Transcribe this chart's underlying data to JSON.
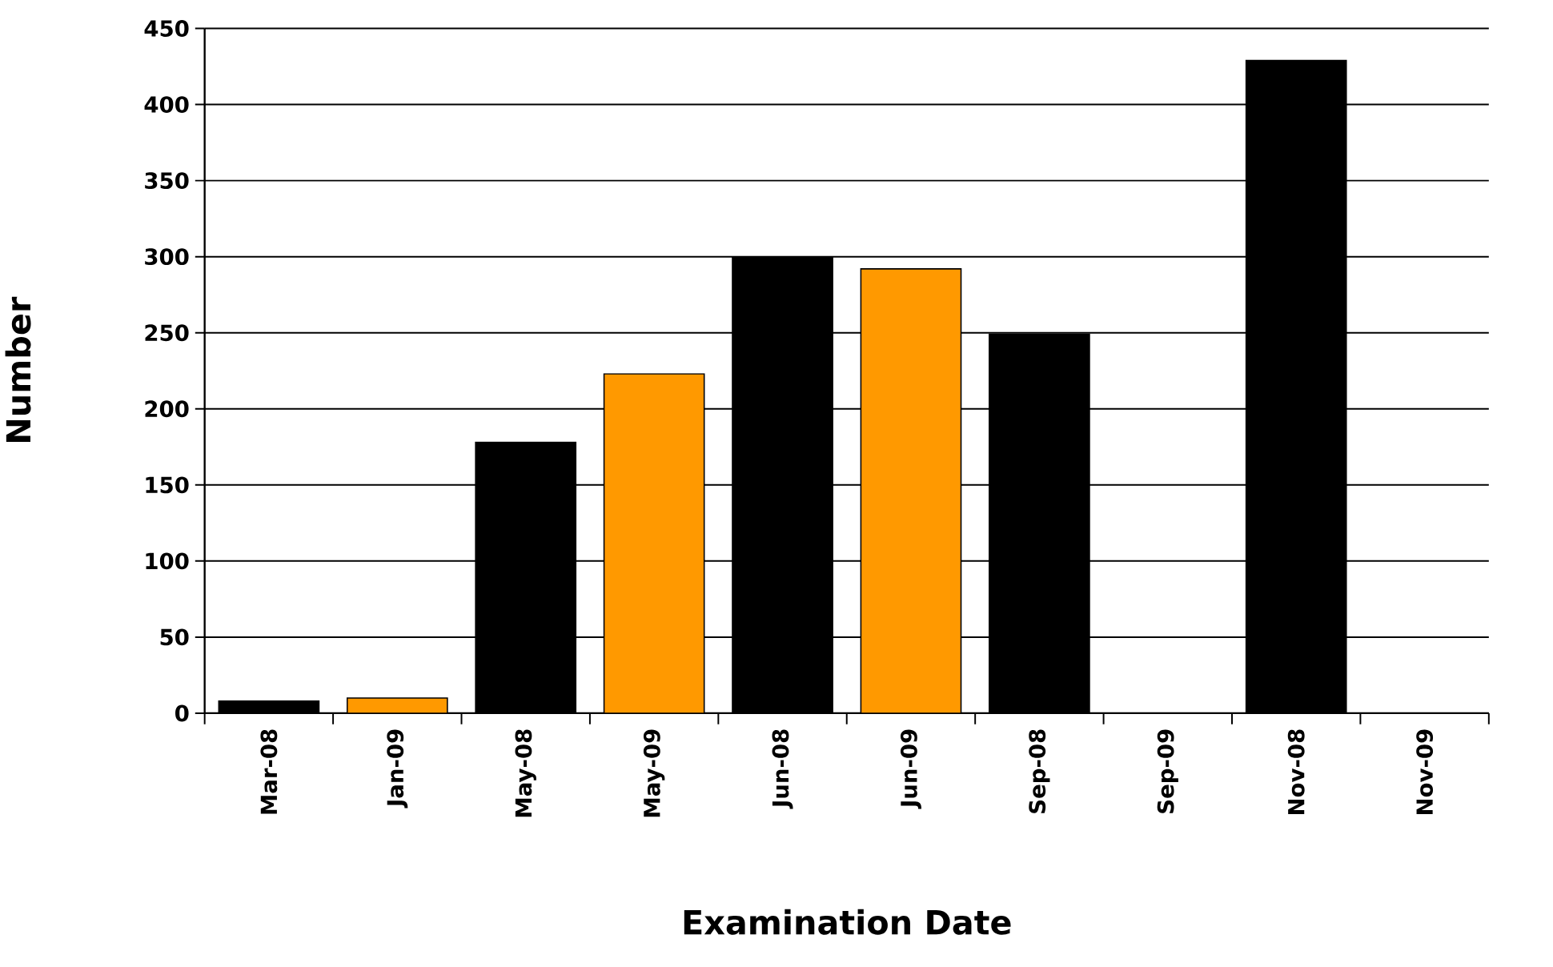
{
  "chart_data": {
    "type": "bar",
    "xlabel": "Examination Date",
    "ylabel": "Number",
    "categories": [
      "Mar-08",
      "Jan-09",
      "May-08",
      "May-09",
      "Jun-08",
      "Jun-09",
      "Sep-08",
      "Sep-09",
      "Nov-08",
      "Nov-09"
    ],
    "values": [
      8,
      10,
      178,
      223,
      300,
      292,
      249,
      null,
      429,
      null
    ],
    "colors": [
      "#000000",
      "#ff9900",
      "#000000",
      "#ff9900",
      "#000000",
      "#ff9900",
      "#000000",
      null,
      "#000000",
      null
    ],
    "ylim": [
      0,
      450
    ],
    "yticks": [
      0,
      50,
      100,
      150,
      200,
      250,
      300,
      350,
      400,
      450
    ],
    "grid": "y"
  }
}
